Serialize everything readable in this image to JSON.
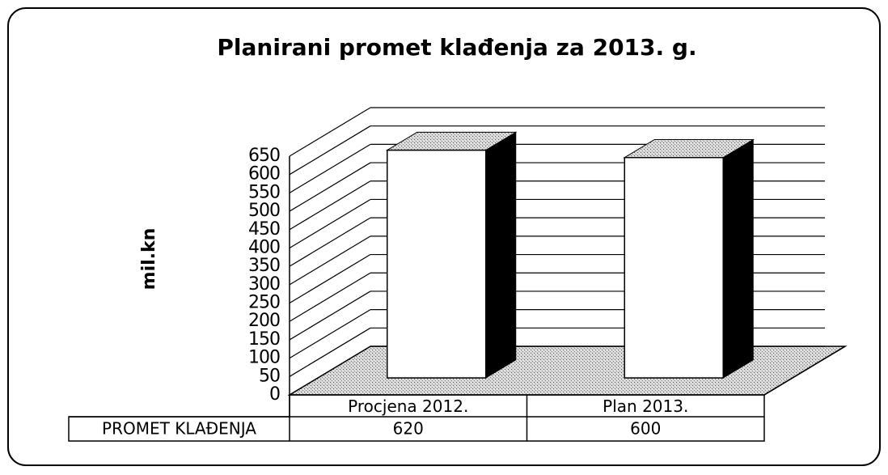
{
  "chart_data": {
    "type": "bar3d",
    "title": "Planirani promet klađenja za 2013. g.",
    "y_label": "mil.kn",
    "categories": [
      "Procjena 2012.",
      "Plan 2013."
    ],
    "series": [
      {
        "name": "PROMET KLAĐENJA",
        "color": "#ffffff",
        "values": [
          620,
          600
        ]
      }
    ],
    "ylim": [
      0,
      650
    ],
    "yticks": [
      0,
      50,
      100,
      150,
      200,
      250,
      300,
      350,
      400,
      450,
      500,
      550,
      600,
      650
    ],
    "grid": true,
    "data_table": true
  }
}
